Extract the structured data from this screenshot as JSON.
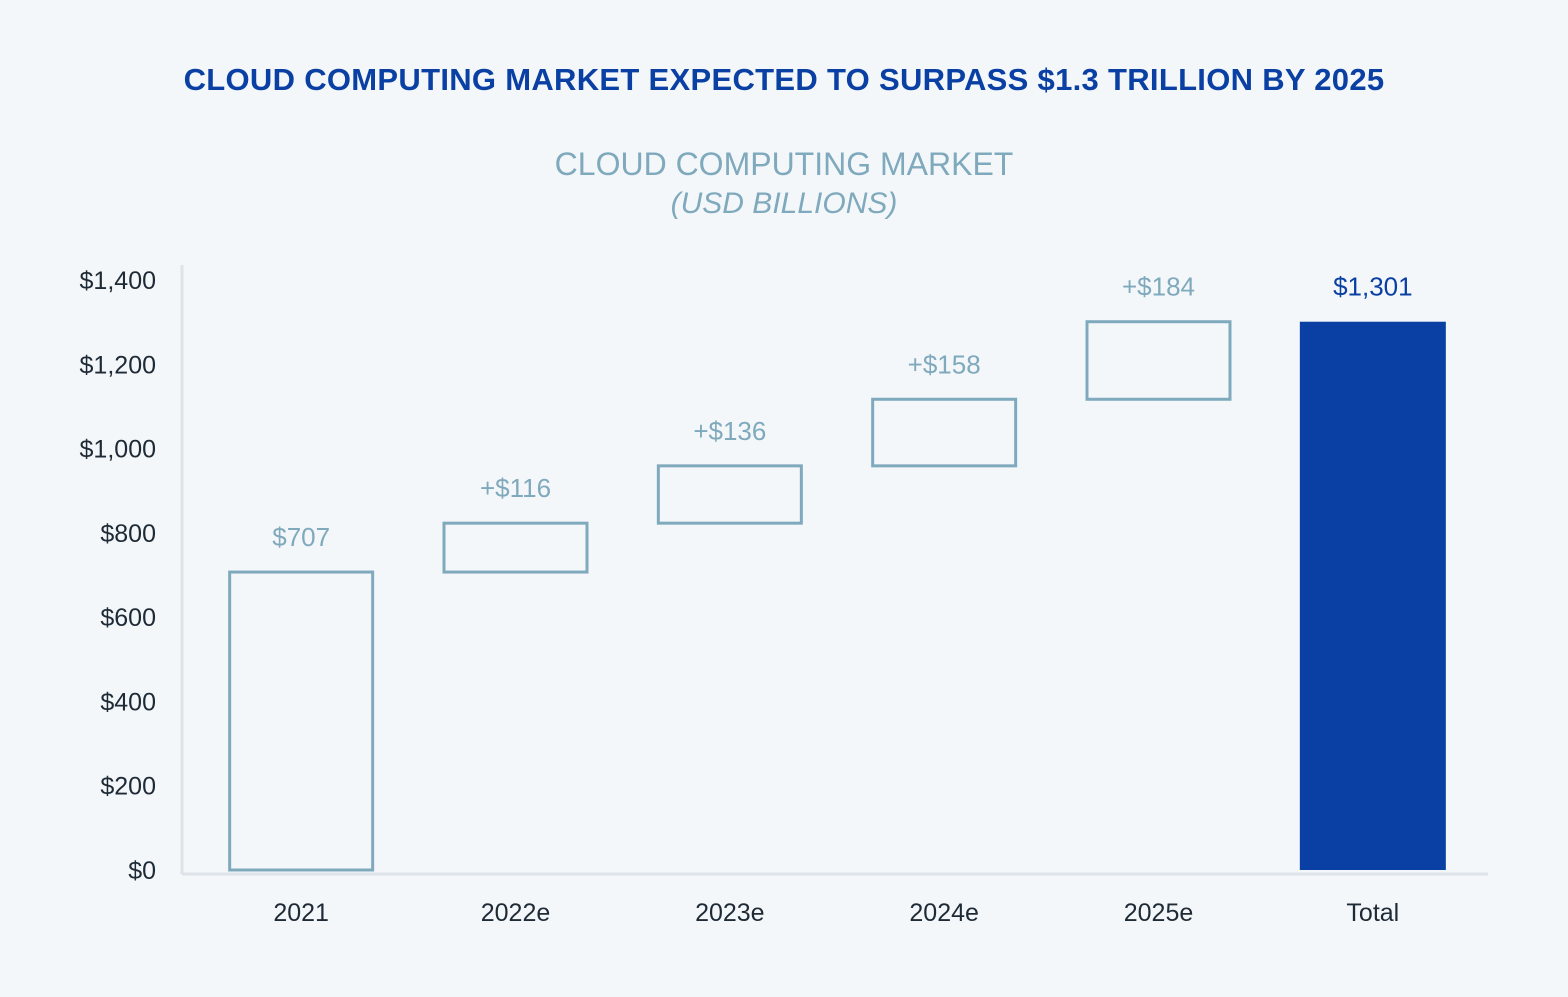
{
  "headline": "CLOUD COMPUTING MARKET EXPECTED TO SURPASS $1.3 TRILLION BY 2025",
  "chart_data": {
    "type": "waterfall",
    "title": "CLOUD COMPUTING MARKET",
    "subtitle": "(USD BILLIONS)",
    "categories": [
      "2021",
      "2022e",
      "2023e",
      "2024e",
      "2025e",
      "Total"
    ],
    "values": [
      707,
      116,
      136,
      158,
      184,
      1301
    ],
    "labels": [
      "$707",
      "+$116",
      "+$136",
      "+$158",
      "+$184",
      "$1,301"
    ],
    "kinds": [
      "base",
      "increment",
      "increment",
      "increment",
      "increment",
      "total"
    ],
    "ylim": [
      0,
      1400
    ],
    "yticks": [
      0,
      200,
      400,
      600,
      800,
      1000,
      1200,
      1400
    ],
    "ytick_labels": [
      "$0",
      "$200",
      "$400",
      "$600",
      "$800",
      "$1,000",
      "$1,200",
      "$1,400"
    ],
    "grid": false,
    "legend": "none",
    "colors": {
      "outline": "#7fa9bc",
      "total_fill": "#0a40a3",
      "headline": "#0a40a3",
      "axis": "#dde3e8"
    }
  }
}
